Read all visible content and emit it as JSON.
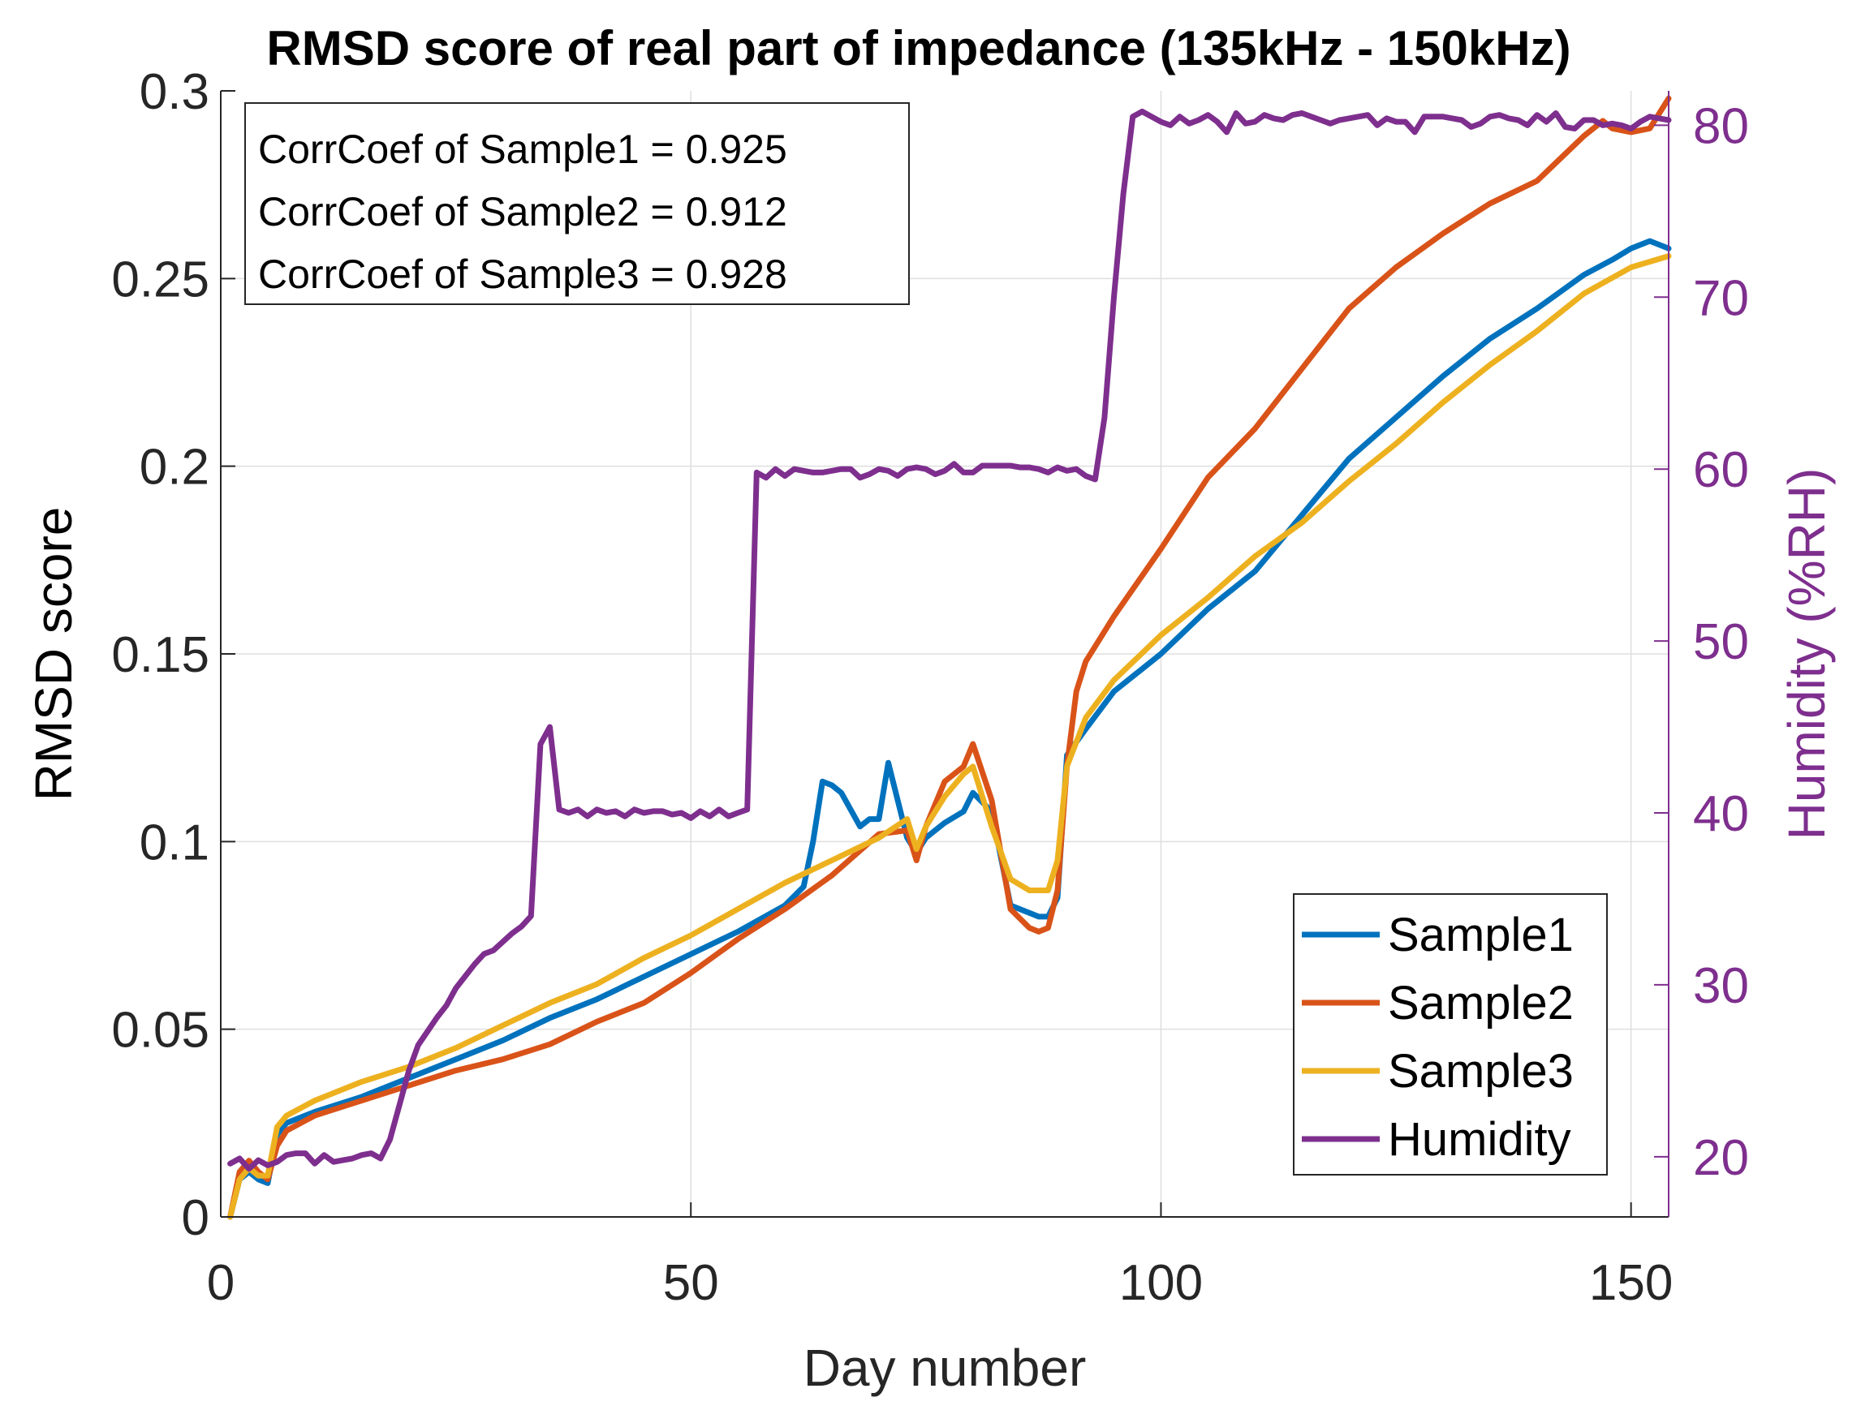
{
  "chart_data": {
    "type": "line",
    "title": "RMSD score of real part of impedance (135kHz - 150kHz)",
    "xlabel": "Day number",
    "ylabel": "RMSD score",
    "y2label": "Humidity (%RH)",
    "xlim": [
      0,
      154
    ],
    "ylim": [
      0,
      0.3
    ],
    "y2lim": [
      16.5,
      82
    ],
    "xticks": [
      0,
      50,
      100,
      150
    ],
    "xtick_labels": [
      "0",
      "50",
      "100",
      "150"
    ],
    "yticks": [
      0,
      0.05,
      0.1,
      0.15,
      0.2,
      0.25,
      0.3
    ],
    "ytick_labels": [
      "0",
      "0.05",
      "0.1",
      "0.15",
      "0.2",
      "0.25",
      "0.3"
    ],
    "y2ticks": [
      20,
      30,
      40,
      50,
      60,
      70,
      80
    ],
    "y2tick_labels": [
      "20",
      "30",
      "40",
      "50",
      "60",
      "70",
      "80"
    ],
    "grid": true,
    "legend_position": "bottom-right",
    "annotation": {
      "lines": [
        "CorrCoef of Sample1 = 0.925",
        "CorrCoef of Sample2 = 0.912",
        "CorrCoef of Sample3 = 0.928"
      ]
    },
    "series": [
      {
        "name": "Sample1",
        "color": "#0072BD",
        "axis": "left",
        "x": [
          1,
          2,
          3,
          4,
          5,
          6,
          7,
          10,
          15,
          20,
          25,
          30,
          35,
          40,
          45,
          50,
          55,
          60,
          62,
          63,
          64,
          65,
          66,
          68,
          69,
          70,
          71,
          73,
          74,
          75,
          77,
          79,
          80,
          82,
          84,
          86,
          87,
          88,
          89,
          90,
          92,
          95,
          100,
          105,
          110,
          115,
          120,
          125,
          130,
          135,
          140,
          145,
          148,
          150,
          152,
          154
        ],
        "values": [
          0.0,
          0.01,
          0.012,
          0.01,
          0.009,
          0.022,
          0.025,
          0.028,
          0.032,
          0.037,
          0.042,
          0.047,
          0.053,
          0.058,
          0.064,
          0.07,
          0.076,
          0.083,
          0.088,
          0.1,
          0.116,
          0.115,
          0.113,
          0.104,
          0.106,
          0.106,
          0.121,
          0.101,
          0.097,
          0.101,
          0.105,
          0.108,
          0.113,
          0.108,
          0.083,
          0.081,
          0.08,
          0.08,
          0.085,
          0.123,
          0.13,
          0.14,
          0.15,
          0.162,
          0.172,
          0.187,
          0.202,
          0.213,
          0.224,
          0.234,
          0.242,
          0.251,
          0.255,
          0.258,
          0.26,
          0.258
        ]
      },
      {
        "name": "Sample2",
        "color": "#D95319",
        "axis": "left",
        "x": [
          1,
          2,
          3,
          4,
          5,
          6,
          7,
          10,
          15,
          20,
          25,
          30,
          35,
          40,
          45,
          50,
          55,
          60,
          65,
          70,
          73,
          74,
          75,
          77,
          79,
          80,
          82,
          84,
          86,
          87,
          88,
          89,
          90,
          91,
          92,
          95,
          100,
          105,
          110,
          115,
          120,
          125,
          130,
          135,
          140,
          145,
          147,
          148,
          150,
          152,
          154
        ],
        "values": [
          0.0,
          0.012,
          0.015,
          0.012,
          0.01,
          0.019,
          0.023,
          0.027,
          0.031,
          0.035,
          0.039,
          0.042,
          0.046,
          0.052,
          0.057,
          0.065,
          0.074,
          0.082,
          0.091,
          0.102,
          0.103,
          0.095,
          0.104,
          0.116,
          0.12,
          0.126,
          0.111,
          0.082,
          0.077,
          0.076,
          0.077,
          0.087,
          0.12,
          0.14,
          0.148,
          0.16,
          0.178,
          0.197,
          0.21,
          0.226,
          0.242,
          0.253,
          0.262,
          0.27,
          0.276,
          0.288,
          0.292,
          0.29,
          0.289,
          0.29,
          0.298
        ]
      },
      {
        "name": "Sample3",
        "color": "#EDB120",
        "axis": "left",
        "x": [
          1,
          2,
          3,
          4,
          5,
          6,
          7,
          10,
          15,
          20,
          25,
          30,
          35,
          40,
          45,
          50,
          55,
          60,
          65,
          70,
          73,
          74,
          75,
          77,
          79,
          80,
          82,
          84,
          86,
          88,
          89,
          90,
          92,
          95,
          100,
          105,
          110,
          115,
          120,
          125,
          130,
          135,
          140,
          145,
          150,
          154
        ],
        "values": [
          0.0,
          0.01,
          0.013,
          0.011,
          0.011,
          0.024,
          0.027,
          0.031,
          0.036,
          0.04,
          0.045,
          0.051,
          0.057,
          0.062,
          0.069,
          0.075,
          0.082,
          0.089,
          0.095,
          0.101,
          0.106,
          0.098,
          0.104,
          0.112,
          0.118,
          0.12,
          0.104,
          0.09,
          0.087,
          0.087,
          0.095,
          0.12,
          0.133,
          0.143,
          0.155,
          0.165,
          0.176,
          0.185,
          0.196,
          0.206,
          0.217,
          0.227,
          0.236,
          0.246,
          0.253,
          0.256
        ]
      },
      {
        "name": "Humidity",
        "color": "#7E2F8E",
        "axis": "right",
        "x": [
          1,
          2,
          3,
          4,
          5,
          6,
          7,
          8,
          9,
          10,
          11,
          12,
          13,
          14,
          15,
          16,
          17,
          18,
          19,
          20,
          21,
          22,
          23,
          24,
          25,
          26,
          27,
          28,
          29,
          30,
          31,
          32,
          33,
          34,
          35,
          36,
          37,
          38,
          39,
          40,
          41,
          42,
          43,
          44,
          45,
          46,
          47,
          48,
          49,
          50,
          51,
          52,
          53,
          54,
          55,
          56,
          57,
          58,
          59,
          60,
          61,
          62,
          63,
          64,
          65,
          66,
          67,
          68,
          69,
          70,
          71,
          72,
          73,
          74,
          75,
          76,
          77,
          78,
          79,
          80,
          81,
          82,
          83,
          84,
          85,
          86,
          87,
          88,
          89,
          90,
          91,
          92,
          93,
          94,
          95,
          96,
          97,
          98,
          99,
          100,
          101,
          102,
          103,
          104,
          105,
          106,
          107,
          108,
          109,
          110,
          111,
          112,
          113,
          114,
          115,
          116,
          117,
          118,
          119,
          120,
          121,
          122,
          123,
          124,
          125,
          126,
          127,
          128,
          129,
          130,
          131,
          132,
          133,
          134,
          135,
          136,
          137,
          138,
          139,
          140,
          141,
          142,
          143,
          144,
          145,
          146,
          147,
          148,
          149,
          150,
          151,
          152,
          153,
          154
        ],
        "values": [
          19.6,
          19.9,
          19.3,
          19.8,
          19.5,
          19.7,
          20.1,
          20.2,
          20.2,
          19.6,
          20.1,
          19.7,
          19.8,
          19.9,
          20.1,
          20.2,
          19.9,
          21.0,
          23.0,
          25.0,
          26.5,
          27.3,
          28.1,
          28.8,
          29.8,
          30.5,
          31.2,
          31.8,
          32.0,
          32.5,
          33.0,
          33.4,
          34.0,
          44.0,
          45.0,
          40.2,
          40.0,
          40.2,
          39.8,
          40.2,
          40.0,
          40.1,
          39.8,
          40.2,
          40.0,
          40.1,
          40.1,
          39.9,
          40.0,
          39.7,
          40.1,
          39.8,
          40.2,
          39.8,
          40.0,
          40.2,
          59.8,
          59.5,
          60.0,
          59.6,
          60.0,
          59.9,
          59.8,
          59.8,
          59.9,
          60.0,
          60.0,
          59.5,
          59.7,
          60.0,
          59.9,
          59.6,
          60.0,
          60.1,
          60.0,
          59.7,
          59.9,
          60.3,
          59.8,
          59.8,
          60.2,
          60.2,
          60.2,
          60.2,
          60.1,
          60.1,
          60.0,
          59.8,
          60.1,
          59.9,
          60.0,
          59.6,
          59.4,
          63.0,
          70.0,
          76.0,
          80.5,
          80.8,
          80.5,
          80.2,
          80.0,
          80.5,
          80.1,
          80.3,
          80.6,
          80.2,
          79.6,
          80.7,
          80.1,
          80.2,
          80.6,
          80.4,
          80.3,
          80.6,
          80.7,
          80.5,
          80.3,
          80.1,
          80.3,
          80.4,
          80.5,
          80.6,
          80.0,
          80.4,
          80.2,
          80.2,
          79.6,
          80.5,
          80.5,
          80.5,
          80.4,
          80.3,
          79.9,
          80.1,
          80.5,
          80.6,
          80.4,
          80.3,
          80.0,
          80.6,
          80.2,
          80.7,
          79.9,
          79.8,
          80.3,
          80.3,
          80.0,
          80.1,
          80.0,
          79.8,
          80.2,
          80.5,
          80.4,
          80.3
        ]
      }
    ]
  }
}
